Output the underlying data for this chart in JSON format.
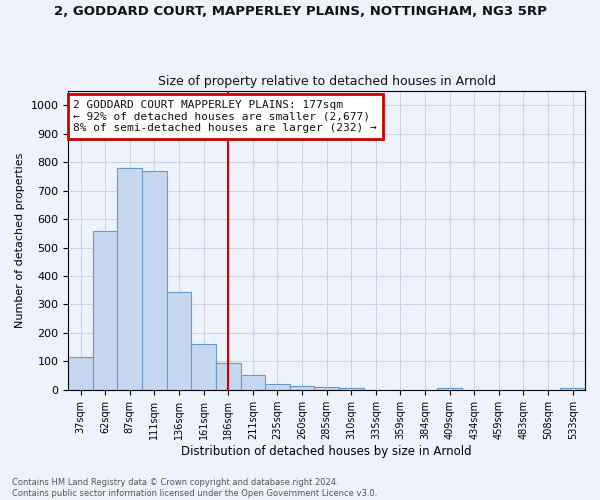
{
  "title": "2, GODDARD COURT, MAPPERLEY PLAINS, NOTTINGHAM, NG3 5RP",
  "subtitle": "Size of property relative to detached houses in Arnold",
  "xlabel": "Distribution of detached houses by size in Arnold",
  "ylabel": "Number of detached properties",
  "bar_labels": [
    "37sqm",
    "62sqm",
    "87sqm",
    "111sqm",
    "136sqm",
    "161sqm",
    "186sqm",
    "211sqm",
    "235sqm",
    "260sqm",
    "285sqm",
    "310sqm",
    "335sqm",
    "359sqm",
    "384sqm",
    "409sqm",
    "434sqm",
    "459sqm",
    "483sqm",
    "508sqm",
    "533sqm"
  ],
  "bar_values": [
    114,
    557,
    778,
    770,
    345,
    161,
    96,
    53,
    20,
    14,
    10,
    5,
    0,
    0,
    0,
    8,
    0,
    0,
    0,
    0,
    7
  ],
  "bar_color": "#c5d8ef",
  "bar_edge_color": "#6699cc",
  "background_color": "#eef2fb",
  "grid_color": "#c0ceeb",
  "vline_x": 6.0,
  "vline_color": "#cc0000",
  "annotation_text": "2 GODDARD COURT MAPPERLEY PLAINS: 177sqm\n← 92% of detached houses are smaller (2,677)\n8% of semi-detached houses are larger (232) →",
  "annotation_box_color": "#ffffff",
  "annotation_border_color": "#cc0000",
  "footer": "Contains HM Land Registry data © Crown copyright and database right 2024.\nContains public sector information licensed under the Open Government Licence v3.0.",
  "ylim": [
    0,
    1050
  ],
  "yticks": [
    0,
    100,
    200,
    300,
    400,
    500,
    600,
    700,
    800,
    900,
    1000
  ]
}
